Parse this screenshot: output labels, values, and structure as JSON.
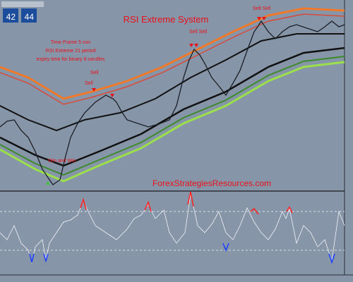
{
  "header": {
    "title": "RSI Extreme System"
  },
  "notes": [
    "Time Frame 5 min",
    "RSI Extreme 21 period",
    "expiry time for binary 8 candles"
  ],
  "signals": [
    "Sell",
    "Sell",
    "Sell Sell",
    "Sell Sell",
    "Win and Win"
  ],
  "watermark": "ForexStrategiesResources.com",
  "price_boxes": [
    "42",
    "44"
  ]
}
